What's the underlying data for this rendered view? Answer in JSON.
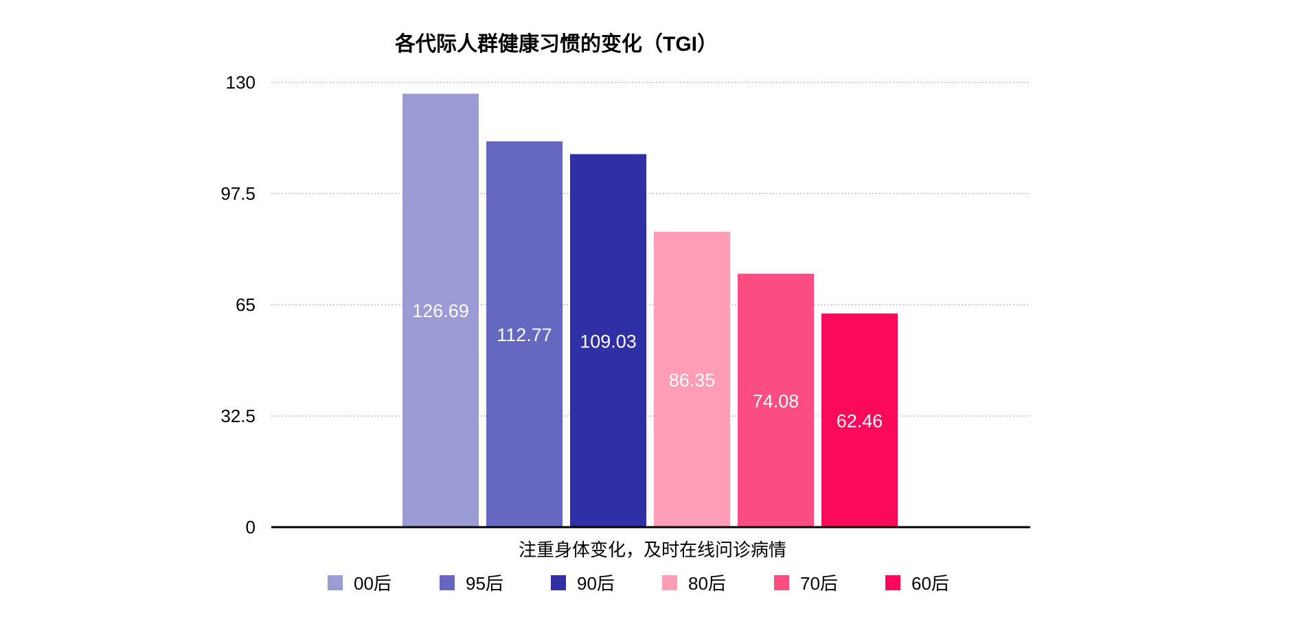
{
  "chart_data": {
    "type": "bar",
    "title": "各代际人群健康习惯的变化（TGI）",
    "categories": [
      "注重身体变化，及时在线问诊病情"
    ],
    "series": [
      {
        "name": "00后",
        "values": [
          126.69
        ],
        "color": "#9b9cd6"
      },
      {
        "name": "95后",
        "values": [
          112.77
        ],
        "color": "#6667c0"
      },
      {
        "name": "90后",
        "values": [
          109.03
        ],
        "color": "#3030a6"
      },
      {
        "name": "80后",
        "values": [
          86.35
        ],
        "color": "#ff9db6"
      },
      {
        "name": "70后",
        "values": [
          74.08
        ],
        "color": "#fb4d81"
      },
      {
        "name": "60后",
        "values": [
          62.46
        ],
        "color": "#fb0a5b"
      }
    ],
    "data_labels": [
      "126.69",
      "112.77",
      "109.03",
      "86.35",
      "74.08",
      "62.46"
    ],
    "ylim": [
      0,
      130
    ],
    "yticks": [
      "0",
      "32.5",
      "65",
      "97.5",
      "130"
    ],
    "grid": true,
    "legend_position": "bottom"
  }
}
